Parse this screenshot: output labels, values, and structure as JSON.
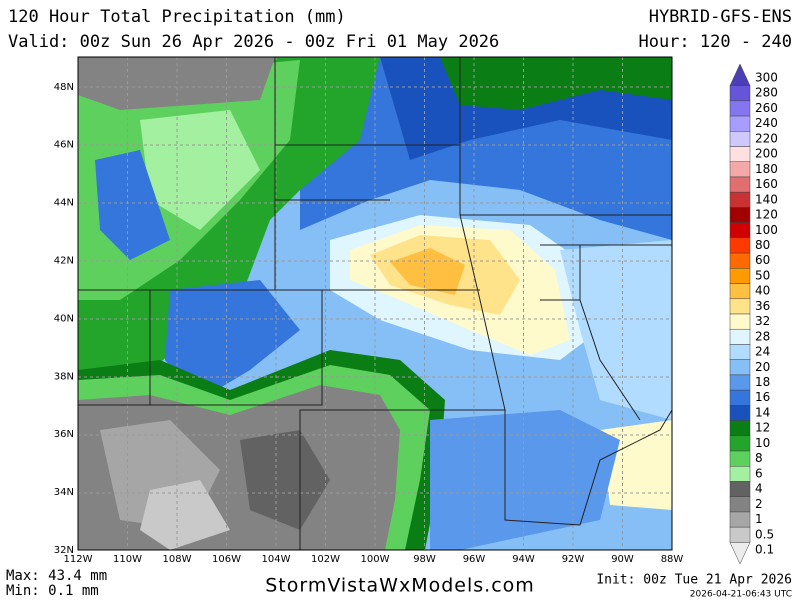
{
  "header": {
    "title": "120 Hour Total Precipitation (mm)",
    "valid": "Valid: 00z Sun 26 Apr 2026 - 00z Fri 01 May 2026",
    "model": "HYBRID-GFS-ENS",
    "hour": "Hour: 120 - 240"
  },
  "map": {
    "lat_labels": [
      "32N",
      "34N",
      "36N",
      "38N",
      "40N",
      "42N",
      "44N",
      "46N",
      "48N"
    ],
    "lon_labels": [
      "112W",
      "110W",
      "108W",
      "106W",
      "104W",
      "102W",
      "100W",
      "98W",
      "96W",
      "94W",
      "92W",
      "90W",
      "88W"
    ]
  },
  "legend": {
    "levels": [
      {
        "value": 300,
        "color": "#4b3fb8"
      },
      {
        "value": 280,
        "color": "#6655d8"
      },
      {
        "value": 260,
        "color": "#8576f0"
      },
      {
        "value": 240,
        "color": "#a99cff"
      },
      {
        "value": 220,
        "color": "#cfc8ff"
      },
      {
        "value": 200,
        "color": "#ffe0e0"
      },
      {
        "value": 180,
        "color": "#f5a8a8"
      },
      {
        "value": 160,
        "color": "#e07070"
      },
      {
        "value": 140,
        "color": "#c83232"
      },
      {
        "value": 120,
        "color": "#a00000"
      },
      {
        "value": 100,
        "color": "#d00000"
      },
      {
        "value": 80,
        "color": "#ff3a00"
      },
      {
        "value": 60,
        "color": "#ff6a00"
      },
      {
        "value": 50,
        "color": "#ff9a00"
      },
      {
        "value": 40,
        "color": "#ffbf40"
      },
      {
        "value": 36,
        "color": "#ffe38a"
      },
      {
        "value": 32,
        "color": "#fffacc"
      },
      {
        "value": 28,
        "color": "#dff6ff"
      },
      {
        "value": 24,
        "color": "#b2dcff"
      },
      {
        "value": 20,
        "color": "#86bff5"
      },
      {
        "value": 18,
        "color": "#5a98ec"
      },
      {
        "value": 16,
        "color": "#3476dc"
      },
      {
        "value": 14,
        "color": "#1a52bd"
      },
      {
        "value": 12,
        "color": "#0a7d14"
      },
      {
        "value": 10,
        "color": "#22a52a"
      },
      {
        "value": 8,
        "color": "#5ed05e"
      },
      {
        "value": 6,
        "color": "#a3f0a0"
      },
      {
        "value": 4,
        "color": "#626262"
      },
      {
        "value": 2,
        "color": "#838383"
      },
      {
        "value": 1,
        "color": "#a6a6a6"
      },
      {
        "value": 0.5,
        "color": "#c9c9c9"
      },
      {
        "value": 0.1,
        "color": "#ececec"
      }
    ]
  },
  "footer": {
    "max": "Max: 43.4 mm",
    "min": "Min: 0.1 mm",
    "site": "StormVistaWxModels.com",
    "init": "Init: 00z Tue 21 Apr 2026",
    "stamp": "2026-04-21-06:43 UTC"
  }
}
